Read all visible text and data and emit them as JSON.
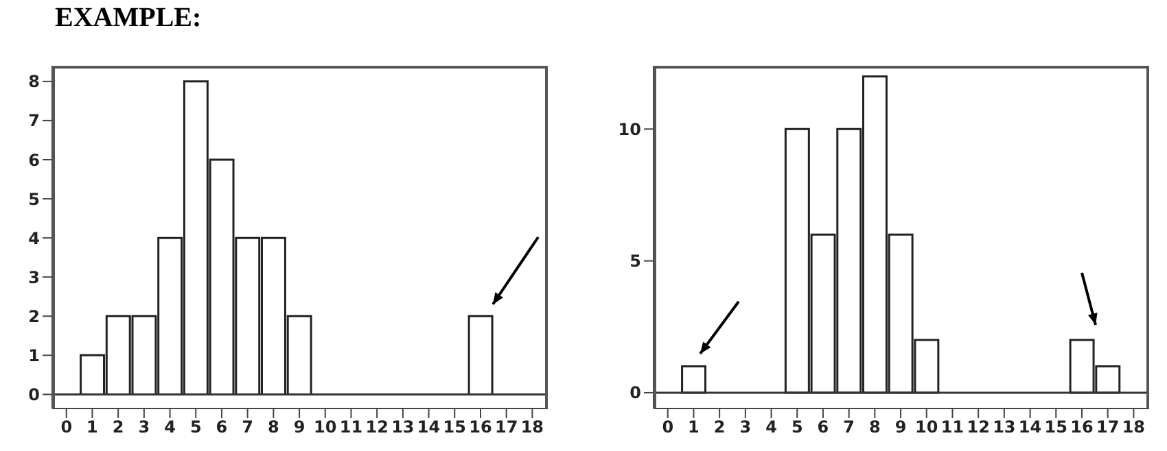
{
  "chart_data": [
    {
      "type": "histogram",
      "title": "EXAMPLE:",
      "bins": [
        0.5,
        1.5,
        2.5,
        3.5,
        4.5,
        5.5,
        6.5,
        7.5,
        8.5,
        9.5,
        10.5,
        11.5,
        12.5,
        13.5,
        14.5,
        15.5,
        16.5
      ],
      "values": [
        1,
        2,
        2,
        4,
        8,
        6,
        4,
        4,
        2,
        0,
        0,
        0,
        0,
        0,
        0,
        2
      ],
      "color": "#ffffff",
      "xlim": [
        -0.55,
        18.6
      ],
      "ylim": [
        -0.36,
        8.4
      ],
      "xticks": [
        0,
        1,
        2,
        3,
        4,
        5,
        6,
        7,
        8,
        9,
        10,
        11,
        12,
        13,
        14,
        15,
        16,
        17,
        18
      ],
      "yticks": [
        0,
        1,
        2,
        3,
        4,
        5,
        6,
        7,
        8
      ],
      "ref_lines": [
        {
          "axis": "y",
          "value": 0
        }
      ],
      "grid": false
    },
    {
      "type": "histogram",
      "bins": [
        0.5,
        1.5,
        2.5,
        3.5,
        4.5,
        5.5,
        6.5,
        7.5,
        8.5,
        9.5,
        10.5,
        11.5,
        12.5,
        13.5,
        14.5,
        15.5,
        16.5,
        17.5
      ],
      "values": [
        1,
        0,
        0,
        0,
        10,
        6,
        10,
        12,
        6,
        2,
        0,
        0,
        0,
        0,
        0,
        2,
        1
      ],
      "color": "#ffffff",
      "xlim": [
        -0.55,
        18.6
      ],
      "ylim": [
        -0.6,
        12.4
      ],
      "xticks": [
        0,
        1,
        2,
        3,
        4,
        5,
        6,
        7,
        8,
        9,
        10,
        11,
        12,
        13,
        14,
        15,
        16,
        17,
        18
      ],
      "yticks": [
        0,
        5,
        10
      ],
      "ref_lines": [
        {
          "axis": "y",
          "value": 0
        }
      ],
      "grid": false
    }
  ]
}
